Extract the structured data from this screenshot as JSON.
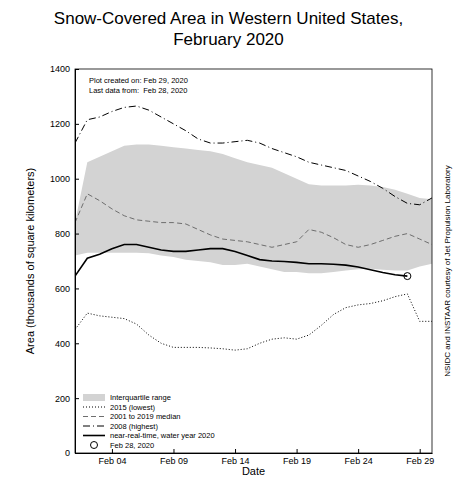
{
  "chart_data": {
    "type": "line",
    "title": [
      "Snow-Covered Area in Western United States,",
      "February 2020"
    ],
    "x_label": "Date",
    "y_label": "Area (thousands of square kilometers)",
    "annotations": [
      "Plot created on: Feb 29, 2020",
      "Last data from:  Feb 28, 2020"
    ],
    "source": "NSIDC and INSTAAR courtesy of Jet Propulsion Laboratory",
    "x": [
      1,
      2,
      3,
      4,
      5,
      6,
      7,
      8,
      9,
      10,
      11,
      12,
      13,
      14,
      15,
      16,
      17,
      18,
      19,
      20,
      21,
      22,
      23,
      24,
      25,
      26,
      27,
      28,
      29,
      30
    ],
    "xlim": [
      1,
      30
    ],
    "xticks": [
      {
        "value": 4,
        "label": "Feb 04"
      },
      {
        "value": 9,
        "label": "Feb 09"
      },
      {
        "value": 14,
        "label": "Feb 14"
      },
      {
        "value": 19,
        "label": "Feb 19"
      },
      {
        "value": 24,
        "label": "Feb 24"
      },
      {
        "value": 29,
        "label": "Feb 29"
      }
    ],
    "ylim": [
      0,
      1400
    ],
    "yticks": [
      0,
      200,
      400,
      600,
      800,
      1000,
      1200,
      1400
    ],
    "grid": false,
    "legend": "lower left",
    "series": [
      {
        "name": "Interquartile range",
        "type": "area",
        "color": "#d3d3d3",
        "lower": [
          720,
          730,
          730,
          730,
          730,
          730,
          728,
          720,
          715,
          705,
          700,
          695,
          685,
          685,
          690,
          680,
          670,
          660,
          660,
          655,
          655,
          660,
          665,
          670,
          672,
          668,
          665,
          665,
          680,
          690
        ],
        "upper": [
          840,
          1060,
          1080,
          1100,
          1120,
          1125,
          1125,
          1120,
          1115,
          1110,
          1105,
          1100,
          1090,
          1075,
          1060,
          1050,
          1040,
          1020,
          1000,
          980,
          975,
          975,
          975,
          978,
          975,
          970,
          960,
          945,
          930,
          925
        ]
      },
      {
        "name": "2015 (lowest)",
        "type": "line",
        "color": "#000000",
        "line_style": "dotted",
        "values": [
          450,
          510,
          500,
          495,
          490,
          470,
          430,
          400,
          385,
          385,
          385,
          383,
          380,
          375,
          380,
          400,
          415,
          420,
          415,
          430,
          465,
          505,
          530,
          540,
          545,
          555,
          570,
          580,
          480,
          480
        ]
      },
      {
        "name": "2001 to 2019 median",
        "type": "line",
        "color": "#6e6e6e",
        "line_style": "dashed",
        "values": [
          840,
          945,
          920,
          890,
          865,
          850,
          845,
          840,
          840,
          835,
          815,
          795,
          780,
          775,
          770,
          760,
          750,
          760,
          770,
          815,
          805,
          785,
          760,
          750,
          760,
          775,
          790,
          800,
          780,
          760
        ]
      },
      {
        "name": "2008 (highest)",
        "type": "line",
        "color": "#000000",
        "line_style": "dashdot",
        "values": [
          1130,
          1215,
          1225,
          1245,
          1260,
          1265,
          1250,
          1225,
          1200,
          1175,
          1145,
          1130,
          1130,
          1135,
          1140,
          1130,
          1110,
          1095,
          1080,
          1060,
          1050,
          1040,
          1030,
          1010,
          990,
          965,
          935,
          910,
          905,
          930
        ]
      },
      {
        "name": "near-real-time, water year 2020",
        "type": "line",
        "color": "#000000",
        "line_style": "solid",
        "values": [
          645,
          710,
          725,
          745,
          760,
          760,
          750,
          740,
          735,
          735,
          740,
          745,
          745,
          735,
          720,
          705,
          700,
          698,
          695,
          690,
          690,
          688,
          685,
          678,
          668,
          658,
          650,
          645,
          null,
          null
        ]
      },
      {
        "name": "Feb 28, 2020",
        "type": "scatter",
        "color": "#000000",
        "marker": "circle",
        "x": [
          28
        ],
        "values": [
          645
        ]
      }
    ]
  }
}
